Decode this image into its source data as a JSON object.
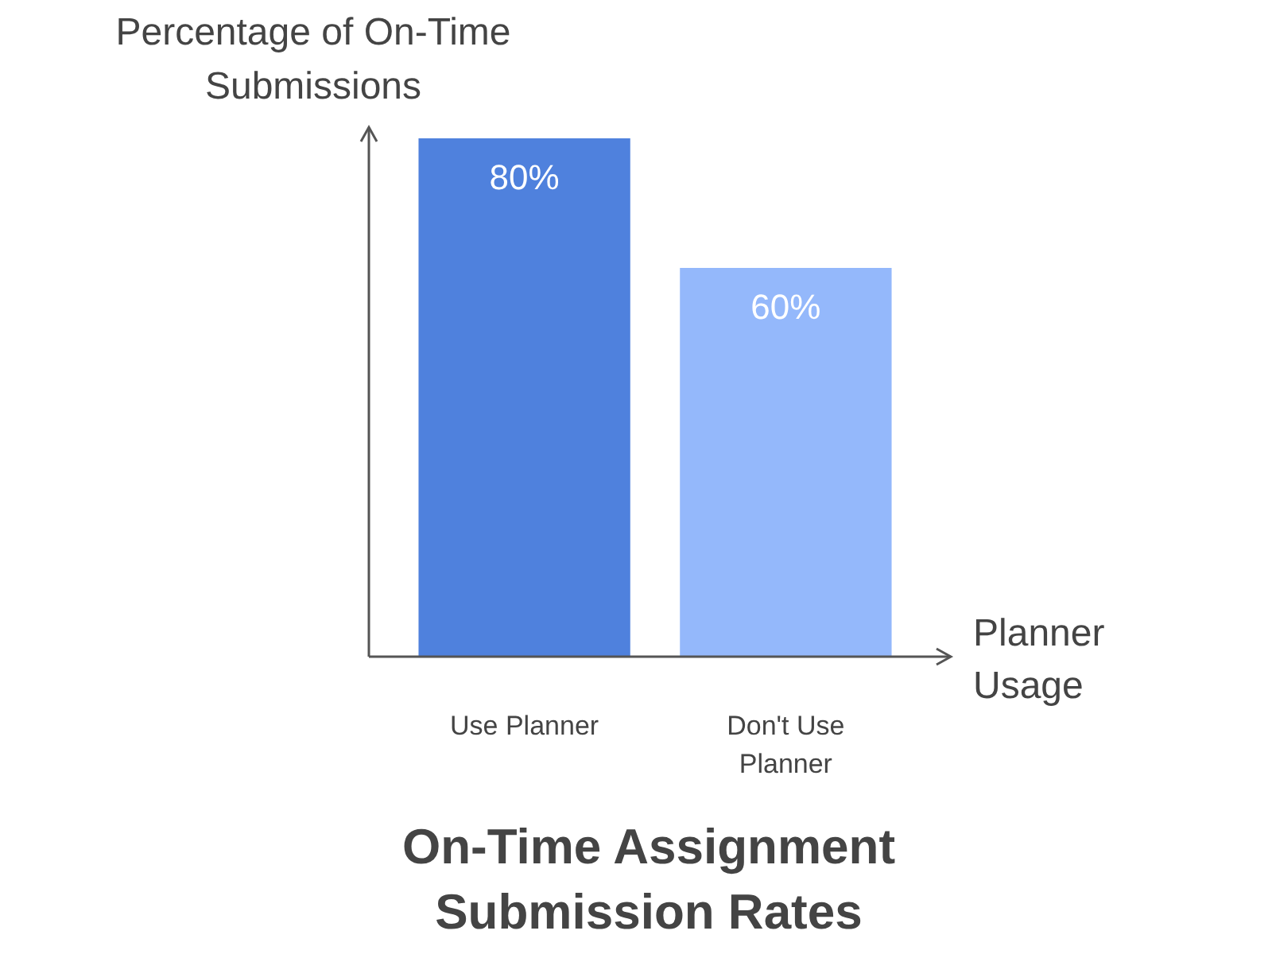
{
  "chart_data": {
    "type": "bar",
    "title": "On-Time Assignment Submission Rates",
    "xlabel": "Planner Usage",
    "ylabel": "Percentage of On-Time Submissions",
    "categories": [
      "Use Planner",
      "Don't Use Planner"
    ],
    "values": [
      80,
      60
    ],
    "colors": [
      "#4f81dd",
      "#94b8fb"
    ],
    "value_labels": [
      "80%",
      "60%"
    ]
  }
}
